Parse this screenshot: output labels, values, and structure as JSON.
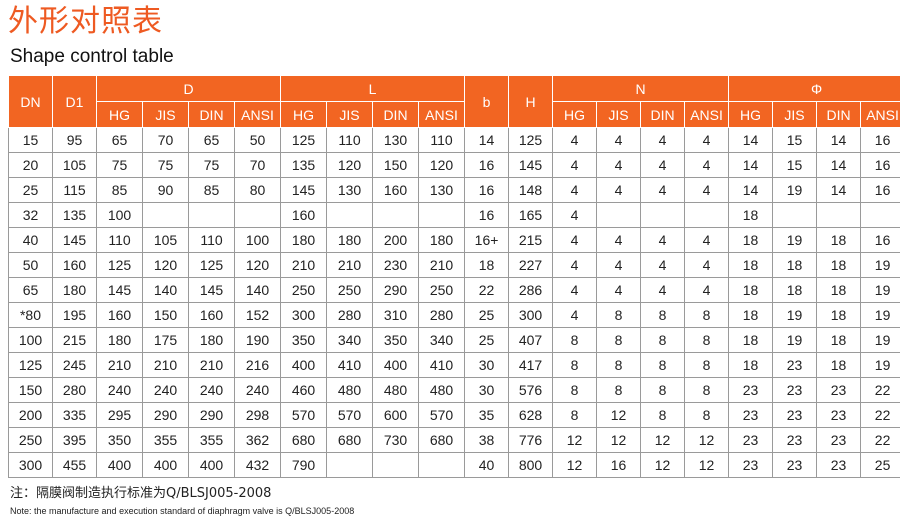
{
  "title_cn": "外形对照表",
  "title_en": "Shape control table",
  "groups": {
    "D": "D",
    "L": "L",
    "N": "N",
    "phi": "Φ"
  },
  "single_headers": {
    "dn": "DN",
    "d1": "D1",
    "b": "b",
    "h": "H"
  },
  "subheaders": [
    "HG",
    "JIS",
    "DIN",
    "ANSI"
  ],
  "rows": [
    [
      "15",
      "95",
      "65",
      "70",
      "65",
      "50",
      "125",
      "110",
      "130",
      "110",
      "14",
      "125",
      "4",
      "4",
      "4",
      "4",
      "14",
      "15",
      "14",
      "16"
    ],
    [
      "20",
      "105",
      "75",
      "75",
      "75",
      "70",
      "135",
      "120",
      "150",
      "120",
      "16",
      "145",
      "4",
      "4",
      "4",
      "4",
      "14",
      "15",
      "14",
      "16"
    ],
    [
      "25",
      "115",
      "85",
      "90",
      "85",
      "80",
      "145",
      "130",
      "160",
      "130",
      "16",
      "148",
      "4",
      "4",
      "4",
      "4",
      "14",
      "19",
      "14",
      "16"
    ],
    [
      "32",
      "135",
      "100",
      "",
      "",
      "",
      "160",
      "",
      "",
      "",
      "16",
      "165",
      "4",
      "",
      "",
      "",
      "18",
      "",
      "",
      ""
    ],
    [
      "40",
      "145",
      "110",
      "105",
      "110",
      "100",
      "180",
      "180",
      "200",
      "180",
      "16+",
      "215",
      "4",
      "4",
      "4",
      "4",
      "18",
      "19",
      "18",
      "16"
    ],
    [
      "50",
      "160",
      "125",
      "120",
      "125",
      "120",
      "210",
      "210",
      "230",
      "210",
      "18",
      "227",
      "4",
      "4",
      "4",
      "4",
      "18",
      "18",
      "18",
      "19"
    ],
    [
      "65",
      "180",
      "145",
      "140",
      "145",
      "140",
      "250",
      "250",
      "290",
      "250",
      "22",
      "286",
      "4",
      "4",
      "4",
      "4",
      "18",
      "18",
      "18",
      "19"
    ],
    [
      "*80",
      "195",
      "160",
      "150",
      "160",
      "152",
      "300",
      "280",
      "310",
      "280",
      "25",
      "300",
      "4",
      "8",
      "8",
      "8",
      "18",
      "19",
      "18",
      "19"
    ],
    [
      "100",
      "215",
      "180",
      "175",
      "180",
      "190",
      "350",
      "340",
      "350",
      "340",
      "25",
      "407",
      "8",
      "8",
      "8",
      "8",
      "18",
      "19",
      "18",
      "19"
    ],
    [
      "125",
      "245",
      "210",
      "210",
      "210",
      "216",
      "400",
      "410",
      "400",
      "410",
      "30",
      "417",
      "8",
      "8",
      "8",
      "8",
      "18",
      "23",
      "18",
      "19"
    ],
    [
      "150",
      "280",
      "240",
      "240",
      "240",
      "240",
      "460",
      "480",
      "480",
      "480",
      "30",
      "576",
      "8",
      "8",
      "8",
      "8",
      "23",
      "23",
      "23",
      "22"
    ],
    [
      "200",
      "335",
      "295",
      "290",
      "290",
      "298",
      "570",
      "570",
      "600",
      "570",
      "35",
      "628",
      "8",
      "12",
      "8",
      "8",
      "23",
      "23",
      "23",
      "22"
    ],
    [
      "250",
      "395",
      "350",
      "355",
      "355",
      "362",
      "680",
      "680",
      "730",
      "680",
      "38",
      "776",
      "12",
      "12",
      "12",
      "12",
      "23",
      "23",
      "23",
      "22"
    ],
    [
      "300",
      "455",
      "400",
      "400",
      "400",
      "432",
      "790",
      "",
      "",
      "",
      "40",
      "800",
      "12",
      "16",
      "12",
      "12",
      "23",
      "23",
      "23",
      "25"
    ]
  ],
  "note_cn": "注：隔膜阀制造执行标准为Q/BLSJ005-2008",
  "note_en": "Note: the manufacture and execution standard of diaphragm valve is Q/BLSJ005-2008",
  "colors": {
    "header_bg": "#f26522",
    "title": "#ee5a22",
    "grid": "#9a9a9a"
  }
}
